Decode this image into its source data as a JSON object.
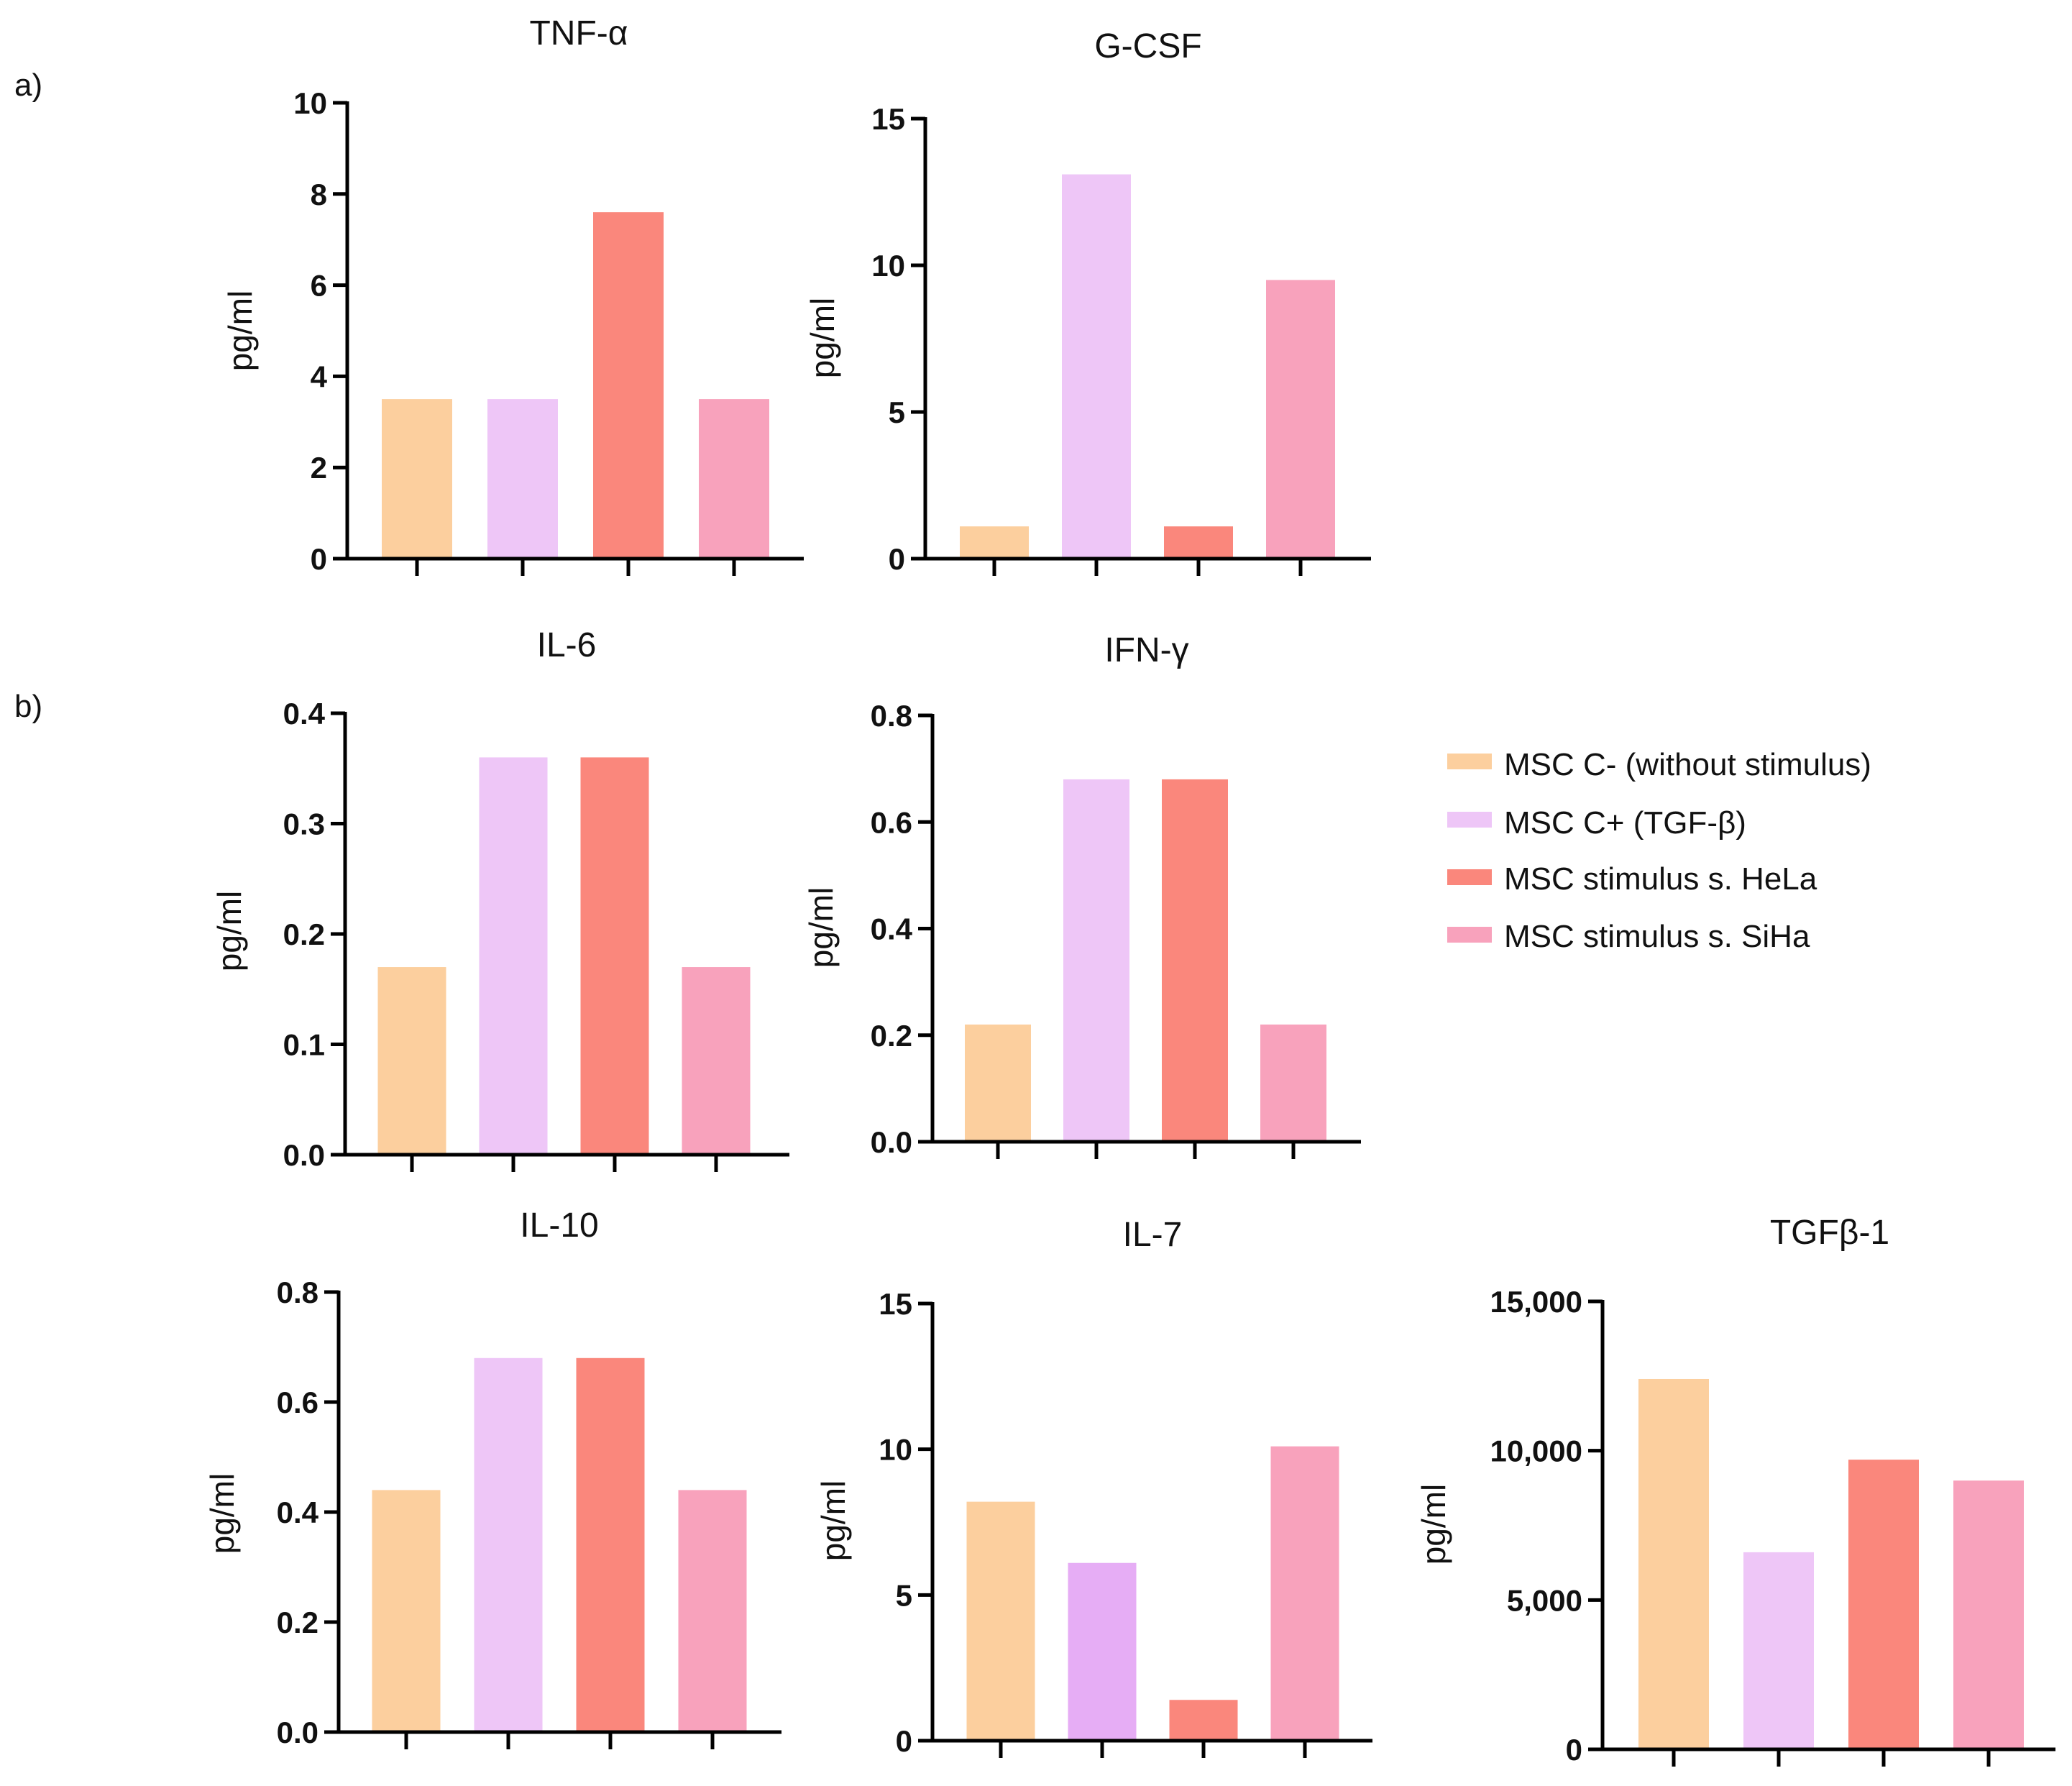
{
  "panel_labels": [
    "a)",
    "b)"
  ],
  "legend": {
    "entries": [
      {
        "label": "MSC C- (without stimulus)",
        "color": "#FCCF9E"
      },
      {
        "label": "MSC C+ (TGF-β)",
        "color": "#EEC6F7"
      },
      {
        "label": "MSC stimulus s. HeLa",
        "color": "#FA877C"
      },
      {
        "label": "MSC stimulus s. SiHa",
        "color": "#F8A2BC"
      }
    ]
  },
  "chart_data": [
    {
      "type": "bar",
      "title": "TNF-α",
      "ylabel": "pg/ml",
      "categories": [
        "MSC C- (without stimulus)",
        "MSC C+ (TGF-β)",
        "MSC stimulus s. HeLa",
        "MSC stimulus s. SiHa"
      ],
      "values": [
        3.5,
        3.5,
        7.6,
        3.5
      ],
      "colors": [
        "#FCCF9E",
        "#EEC6F7",
        "#FA877C",
        "#F8A2BC"
      ],
      "ylim": [
        0,
        10
      ],
      "ticks": [
        0,
        2,
        4,
        6,
        8,
        10
      ],
      "tick_labels": [
        "0",
        "2",
        "4",
        "6",
        "8",
        "10"
      ]
    },
    {
      "type": "bar",
      "title": "G-CSF",
      "ylabel": "pg/ml",
      "categories": [
        "MSC C- (without stimulus)",
        "MSC C+ (TGF-β)",
        "MSC stimulus s. HeLa",
        "MSC stimulus s. SiHa"
      ],
      "values": [
        1.1,
        13.1,
        1.1,
        9.5
      ],
      "colors": [
        "#FCCF9E",
        "#EEC6F7",
        "#FA877C",
        "#F8A2BC"
      ],
      "ylim": [
        0,
        15
      ],
      "ticks": [
        0,
        5,
        10,
        15
      ],
      "tick_labels": [
        "0",
        "5",
        "10",
        "15"
      ]
    },
    {
      "type": "bar",
      "title": "IL-6",
      "ylabel": "pg/ml",
      "categories": [
        "MSC C- (without stimulus)",
        "MSC C+ (TGF-β)",
        "MSC stimulus s. HeLa",
        "MSC stimulus s. SiHa"
      ],
      "values": [
        0.17,
        0.36,
        0.36,
        0.17
      ],
      "colors": [
        "#FCCF9E",
        "#EEC6F7",
        "#FA877C",
        "#F8A2BC"
      ],
      "ylim": [
        0,
        0.4
      ],
      "ticks": [
        0,
        0.1,
        0.2,
        0.3,
        0.4
      ],
      "tick_labels": [
        "0.0",
        "0.1",
        "0.2",
        "0.3",
        "0.4"
      ]
    },
    {
      "type": "bar",
      "title": "IFN-γ",
      "ylabel": "pg/ml",
      "categories": [
        "MSC C- (without stimulus)",
        "MSC C+ (TGF-β)",
        "MSC stimulus s. HeLa",
        "MSC stimulus s. SiHa"
      ],
      "values": [
        0.22,
        0.68,
        0.68,
        0.22
      ],
      "colors": [
        "#FCCF9E",
        "#EEC6F7",
        "#FA877C",
        "#F8A2BC"
      ],
      "ylim": [
        0,
        0.8
      ],
      "ticks": [
        0,
        0.2,
        0.4,
        0.6,
        0.8
      ],
      "tick_labels": [
        "0.0",
        "0.2",
        "0.4",
        "0.6",
        "0.8"
      ]
    },
    {
      "type": "bar",
      "title": "IL-10",
      "ylabel": "pg/ml",
      "categories": [
        "MSC C- (without stimulus)",
        "MSC C+ (TGF-β)",
        "MSC stimulus s. HeLa",
        "MSC stimulus s. SiHa"
      ],
      "values": [
        0.44,
        0.68,
        0.68,
        0.44
      ],
      "colors": [
        "#FCCF9E",
        "#EEC6F7",
        "#FA877C",
        "#F8A2BC"
      ],
      "ylim": [
        0,
        0.8
      ],
      "ticks": [
        0,
        0.2,
        0.4,
        0.6,
        0.8
      ],
      "tick_labels": [
        "0.0",
        "0.2",
        "0.4",
        "0.6",
        "0.8"
      ]
    },
    {
      "type": "bar",
      "title": "IL-7",
      "ylabel": "pg/ml",
      "categories": [
        "MSC C- (without stimulus)",
        "MSC C+ (TGF-β)",
        "MSC stimulus s. HeLa",
        "MSC stimulus s. SiHa"
      ],
      "values": [
        8.2,
        6.1,
        1.4,
        10.1
      ],
      "colors": [
        "#FCCF9E",
        "#E6ADF5",
        "#FA877C",
        "#F8A2BC"
      ],
      "ylim": [
        0,
        15
      ],
      "ticks": [
        0,
        5,
        10,
        15
      ],
      "tick_labels": [
        "0",
        "5",
        "10",
        "15"
      ]
    },
    {
      "type": "bar",
      "title": "TGFβ-1",
      "ylabel": "pg/ml",
      "categories": [
        "MSC C- (without stimulus)",
        "MSC C+ (TGF-β)",
        "MSC stimulus s. HeLa",
        "MSC stimulus s. SiHa"
      ],
      "values": [
        12400,
        6600,
        9700,
        9000
      ],
      "colors": [
        "#FCCF9E",
        "#EEC6F7",
        "#FA877C",
        "#F8A2BC"
      ],
      "ylim": [
        0,
        15000
      ],
      "ticks": [
        0,
        5000,
        10000,
        15000
      ],
      "tick_labels": [
        "0",
        "5,000",
        "10,000",
        "15,000"
      ]
    }
  ]
}
